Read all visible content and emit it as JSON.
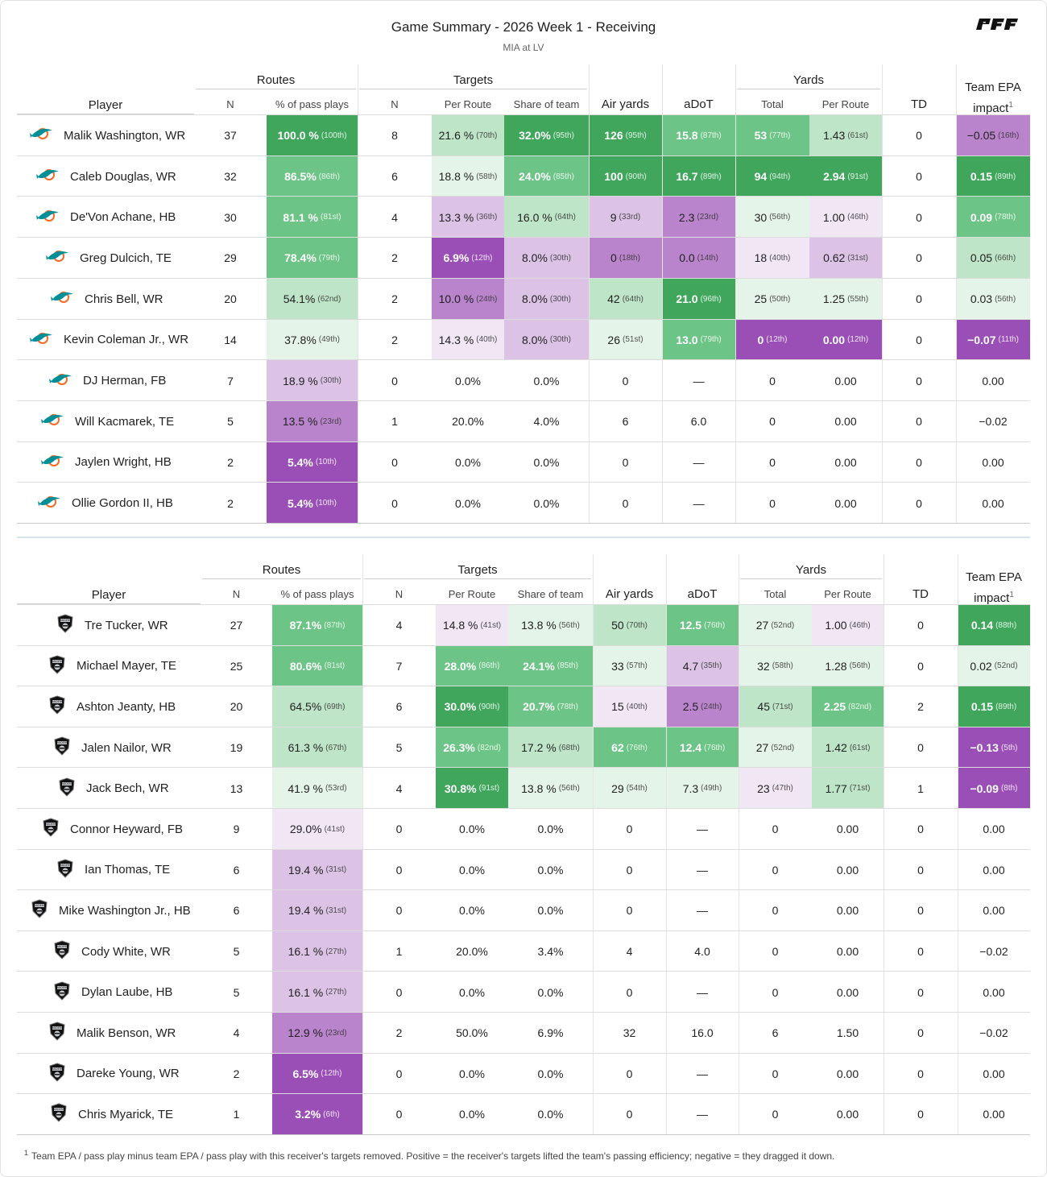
{
  "header": {
    "title": "Game Summary - 2026 Week 1 - Receiving",
    "subtitle": "MIA at LV",
    "logo_icon": "pff-logo-icon"
  },
  "columns": {
    "player": "Player",
    "routes": "Routes",
    "targets": "Targets",
    "yards": "Yards",
    "n": "N",
    "pct_pass_plays": "% of pass plays",
    "per_route": "Per Route",
    "share_of_team": "Share of team",
    "air_yards": "Air yards",
    "adot": "aDoT",
    "total": "Total",
    "td": "TD",
    "epa_line1": "Team EPA",
    "epa_line2": "impact",
    "epa_sup": "1"
  },
  "colors": {
    "green_dark": "#3fa65c",
    "green_mid": "#6cc486",
    "green_light": "#bfe5c8",
    "green_pale": "#e5f4e8",
    "purple_dark": "#9a4fb6",
    "purple_mid": "#b984cc",
    "purple_light": "#dcc3e6",
    "purple_pale": "#f1e7f4"
  },
  "teams": [
    {
      "abbr": "MIA",
      "logo_icon": "dolphins-logo-icon",
      "rows": [
        {
          "player": "Malik Washington, WR",
          "routes_n": "37",
          "route_pct": "100.0 %",
          "route_rank": "(100th)",
          "tgt_n": "8",
          "per_route": "21.6 %",
          "per_route_rank": "(70th)",
          "share": "32.0%",
          "share_rank": "(95th)",
          "air": "126",
          "air_rank": "(95th)",
          "adot": "15.8",
          "adot_rank": "(87th)",
          "yds": "53",
          "yds_rank": "(77th)",
          "ypr": "1.43",
          "ypr_rank": "(61st)",
          "td": "0",
          "epa": "−0.05",
          "epa_rank": "(16th)"
        },
        {
          "player": "Caleb Douglas, WR",
          "routes_n": "32",
          "route_pct": "86.5%",
          "route_rank": "(86th)",
          "tgt_n": "6",
          "per_route": "18.8 %",
          "per_route_rank": "(58th)",
          "share": "24.0%",
          "share_rank": "(85th)",
          "air": "100",
          "air_rank": "(90th)",
          "adot": "16.7",
          "adot_rank": "(89th)",
          "yds": "94",
          "yds_rank": "(94th)",
          "ypr": "2.94",
          "ypr_rank": "(91st)",
          "td": "0",
          "epa": "0.15",
          "epa_rank": "(89th)"
        },
        {
          "player": "De'Von Achane, HB",
          "routes_n": "30",
          "route_pct": "81.1 %",
          "route_rank": "(81st)",
          "tgt_n": "4",
          "per_route": "13.3 %",
          "per_route_rank": "(36th)",
          "share": "16.0 %",
          "share_rank": "(64th)",
          "air": "9",
          "air_rank": "(33rd)",
          "adot": "2.3",
          "adot_rank": "(23rd)",
          "yds": "30",
          "yds_rank": "(56th)",
          "ypr": "1.00",
          "ypr_rank": "(46th)",
          "td": "0",
          "epa": "0.09",
          "epa_rank": "(78th)"
        },
        {
          "player": "Greg Dulcich, TE",
          "routes_n": "29",
          "route_pct": "78.4%",
          "route_rank": "(79th)",
          "tgt_n": "2",
          "per_route": "6.9%",
          "per_route_rank": "(12th)",
          "share": "8.0%",
          "share_rank": "(30th)",
          "air": "0",
          "air_rank": "(18th)",
          "adot": "0.0",
          "adot_rank": "(14th)",
          "yds": "18",
          "yds_rank": "(40th)",
          "ypr": "0.62",
          "ypr_rank": "(31st)",
          "td": "0",
          "epa": "0.05",
          "epa_rank": "(66th)"
        },
        {
          "player": "Chris Bell, WR",
          "routes_n": "20",
          "route_pct": "54.1%",
          "route_rank": "(62nd)",
          "tgt_n": "2",
          "per_route": "10.0 %",
          "per_route_rank": "(24th)",
          "share": "8.0%",
          "share_rank": "(30th)",
          "air": "42",
          "air_rank": "(64th)",
          "adot": "21.0",
          "adot_rank": "(96th)",
          "yds": "25",
          "yds_rank": "(50th)",
          "ypr": "1.25",
          "ypr_rank": "(55th)",
          "td": "0",
          "epa": "0.03",
          "epa_rank": "(56th)"
        },
        {
          "player": "Kevin Coleman Jr., WR",
          "routes_n": "14",
          "route_pct": "37.8%",
          "route_rank": "(49th)",
          "tgt_n": "2",
          "per_route": "14.3 %",
          "per_route_rank": "(40th)",
          "share": "8.0%",
          "share_rank": "(30th)",
          "air": "26",
          "air_rank": "(51st)",
          "adot": "13.0",
          "adot_rank": "(79th)",
          "yds": "0",
          "yds_rank": "(12th)",
          "ypr": "0.00",
          "ypr_rank": "(12th)",
          "td": "0",
          "epa": "−0.07",
          "epa_rank": "(11th)"
        },
        {
          "player": "DJ Herman, FB",
          "routes_n": "7",
          "route_pct": "18.9 %",
          "route_rank": "(30th)",
          "tgt_n": "0",
          "per_route": "0.0%",
          "per_route_rank": "",
          "share": "0.0%",
          "share_rank": "",
          "air": "0",
          "air_rank": "",
          "adot": "—",
          "adot_rank": "",
          "yds": "0",
          "yds_rank": "",
          "ypr": "0.00",
          "ypr_rank": "",
          "td": "0",
          "epa": "0.00",
          "epa_rank": ""
        },
        {
          "player": "Will Kacmarek, TE",
          "routes_n": "5",
          "route_pct": "13.5 %",
          "route_rank": "(23rd)",
          "tgt_n": "1",
          "per_route": "20.0%",
          "per_route_rank": "",
          "share": "4.0%",
          "share_rank": "",
          "air": "6",
          "air_rank": "",
          "adot": "6.0",
          "adot_rank": "",
          "yds": "0",
          "yds_rank": "",
          "ypr": "0.00",
          "ypr_rank": "",
          "td": "0",
          "epa": "−0.02",
          "epa_rank": ""
        },
        {
          "player": "Jaylen Wright, HB",
          "routes_n": "2",
          "route_pct": "5.4%",
          "route_rank": "(10th)",
          "tgt_n": "0",
          "per_route": "0.0%",
          "per_route_rank": "",
          "share": "0.0%",
          "share_rank": "",
          "air": "0",
          "air_rank": "",
          "adot": "—",
          "adot_rank": "",
          "yds": "0",
          "yds_rank": "",
          "ypr": "0.00",
          "ypr_rank": "",
          "td": "0",
          "epa": "0.00",
          "epa_rank": ""
        },
        {
          "player": "Ollie Gordon II, HB",
          "routes_n": "2",
          "route_pct": "5.4%",
          "route_rank": "(10th)",
          "tgt_n": "0",
          "per_route": "0.0%",
          "per_route_rank": "",
          "share": "0.0%",
          "share_rank": "",
          "air": "0",
          "air_rank": "",
          "adot": "—",
          "adot_rank": "",
          "yds": "0",
          "yds_rank": "",
          "ypr": "0.00",
          "ypr_rank": "",
          "td": "0",
          "epa": "0.00",
          "epa_rank": ""
        }
      ]
    },
    {
      "abbr": "LV",
      "logo_icon": "raiders-logo-icon",
      "rows": [
        {
          "player": "Tre Tucker, WR",
          "routes_n": "27",
          "route_pct": "87.1%",
          "route_rank": "(87th)",
          "tgt_n": "4",
          "per_route": "14.8 %",
          "per_route_rank": "(41st)",
          "share": "13.8 %",
          "share_rank": "(56th)",
          "air": "50",
          "air_rank": "(70th)",
          "adot": "12.5",
          "adot_rank": "(76th)",
          "yds": "27",
          "yds_rank": "(52nd)",
          "ypr": "1.00",
          "ypr_rank": "(46th)",
          "td": "0",
          "epa": "0.14",
          "epa_rank": "(88th)"
        },
        {
          "player": "Michael Mayer, TE",
          "routes_n": "25",
          "route_pct": "80.6%",
          "route_rank": "(81st)",
          "tgt_n": "7",
          "per_route": "28.0%",
          "per_route_rank": "(86th)",
          "share": "24.1%",
          "share_rank": "(85th)",
          "air": "33",
          "air_rank": "(57th)",
          "adot": "4.7",
          "adot_rank": "(35th)",
          "yds": "32",
          "yds_rank": "(58th)",
          "ypr": "1.28",
          "ypr_rank": "(56th)",
          "td": "0",
          "epa": "0.02",
          "epa_rank": "(52nd)"
        },
        {
          "player": "Ashton Jeanty, HB",
          "routes_n": "20",
          "route_pct": "64.5%",
          "route_rank": "(69th)",
          "tgt_n": "6",
          "per_route": "30.0%",
          "per_route_rank": "(90th)",
          "share": "20.7%",
          "share_rank": "(78th)",
          "air": "15",
          "air_rank": "(40th)",
          "adot": "2.5",
          "adot_rank": "(24th)",
          "yds": "45",
          "yds_rank": "(71st)",
          "ypr": "2.25",
          "ypr_rank": "(82nd)",
          "td": "2",
          "epa": "0.15",
          "epa_rank": "(89th)"
        },
        {
          "player": "Jalen Nailor, WR",
          "routes_n": "19",
          "route_pct": "61.3 %",
          "route_rank": "(67th)",
          "tgt_n": "5",
          "per_route": "26.3%",
          "per_route_rank": "(82nd)",
          "share": "17.2 %",
          "share_rank": "(68th)",
          "air": "62",
          "air_rank": "(76th)",
          "adot": "12.4",
          "adot_rank": "(76th)",
          "yds": "27",
          "yds_rank": "(52nd)",
          "ypr": "1.42",
          "ypr_rank": "(61st)",
          "td": "0",
          "epa": "−0.13",
          "epa_rank": "(5th)"
        },
        {
          "player": "Jack Bech, WR",
          "routes_n": "13",
          "route_pct": "41.9 %",
          "route_rank": "(53rd)",
          "tgt_n": "4",
          "per_route": "30.8%",
          "per_route_rank": "(91st)",
          "share": "13.8 %",
          "share_rank": "(56th)",
          "air": "29",
          "air_rank": "(54th)",
          "adot": "7.3",
          "adot_rank": "(49th)",
          "yds": "23",
          "yds_rank": "(47th)",
          "ypr": "1.77",
          "ypr_rank": "(71st)",
          "td": "1",
          "epa": "−0.09",
          "epa_rank": "(8th)"
        },
        {
          "player": "Connor Heyward, FB",
          "routes_n": "9",
          "route_pct": "29.0%",
          "route_rank": "(41st)",
          "tgt_n": "0",
          "per_route": "0.0%",
          "per_route_rank": "",
          "share": "0.0%",
          "share_rank": "",
          "air": "0",
          "air_rank": "",
          "adot": "—",
          "adot_rank": "",
          "yds": "0",
          "yds_rank": "",
          "ypr": "0.00",
          "ypr_rank": "",
          "td": "0",
          "epa": "0.00",
          "epa_rank": ""
        },
        {
          "player": "Ian Thomas, TE",
          "routes_n": "6",
          "route_pct": "19.4 %",
          "route_rank": "(31st)",
          "tgt_n": "0",
          "per_route": "0.0%",
          "per_route_rank": "",
          "share": "0.0%",
          "share_rank": "",
          "air": "0",
          "air_rank": "",
          "adot": "—",
          "adot_rank": "",
          "yds": "0",
          "yds_rank": "",
          "ypr": "0.00",
          "ypr_rank": "",
          "td": "0",
          "epa": "0.00",
          "epa_rank": ""
        },
        {
          "player": "Mike Washington Jr., HB",
          "routes_n": "6",
          "route_pct": "19.4 %",
          "route_rank": "(31st)",
          "tgt_n": "0",
          "per_route": "0.0%",
          "per_route_rank": "",
          "share": "0.0%",
          "share_rank": "",
          "air": "0",
          "air_rank": "",
          "adot": "—",
          "adot_rank": "",
          "yds": "0",
          "yds_rank": "",
          "ypr": "0.00",
          "ypr_rank": "",
          "td": "0",
          "epa": "0.00",
          "epa_rank": ""
        },
        {
          "player": "Cody White, WR",
          "routes_n": "5",
          "route_pct": "16.1 %",
          "route_rank": "(27th)",
          "tgt_n": "1",
          "per_route": "20.0%",
          "per_route_rank": "",
          "share": "3.4%",
          "share_rank": "",
          "air": "4",
          "air_rank": "",
          "adot": "4.0",
          "adot_rank": "",
          "yds": "0",
          "yds_rank": "",
          "ypr": "0.00",
          "ypr_rank": "",
          "td": "0",
          "epa": "−0.02",
          "epa_rank": ""
        },
        {
          "player": "Dylan Laube, HB",
          "routes_n": "5",
          "route_pct": "16.1 %",
          "route_rank": "(27th)",
          "tgt_n": "0",
          "per_route": "0.0%",
          "per_route_rank": "",
          "share": "0.0%",
          "share_rank": "",
          "air": "0",
          "air_rank": "",
          "adot": "—",
          "adot_rank": "",
          "yds": "0",
          "yds_rank": "",
          "ypr": "0.00",
          "ypr_rank": "",
          "td": "0",
          "epa": "0.00",
          "epa_rank": ""
        },
        {
          "player": "Malik Benson, WR",
          "routes_n": "4",
          "route_pct": "12.9 %",
          "route_rank": "(23rd)",
          "tgt_n": "2",
          "per_route": "50.0%",
          "per_route_rank": "",
          "share": "6.9%",
          "share_rank": "",
          "air": "32",
          "air_rank": "",
          "adot": "16.0",
          "adot_rank": "",
          "yds": "6",
          "yds_rank": "",
          "ypr": "1.50",
          "ypr_rank": "",
          "td": "0",
          "epa": "−0.02",
          "epa_rank": ""
        },
        {
          "player": "Dareke Young, WR",
          "routes_n": "2",
          "route_pct": "6.5%",
          "route_rank": "(12th)",
          "tgt_n": "0",
          "per_route": "0.0%",
          "per_route_rank": "",
          "share": "0.0%",
          "share_rank": "",
          "air": "0",
          "air_rank": "",
          "adot": "—",
          "adot_rank": "",
          "yds": "0",
          "yds_rank": "",
          "ypr": "0.00",
          "ypr_rank": "",
          "td": "0",
          "epa": "0.00",
          "epa_rank": ""
        },
        {
          "player": "Chris Myarick, TE",
          "routes_n": "1",
          "route_pct": "3.2%",
          "route_rank": "(6th)",
          "tgt_n": "0",
          "per_route": "0.0%",
          "per_route_rank": "",
          "share": "0.0%",
          "share_rank": "",
          "air": "0",
          "air_rank": "",
          "adot": "—",
          "adot_rank": "",
          "yds": "0",
          "yds_rank": "",
          "ypr": "0.00",
          "ypr_rank": "",
          "td": "0",
          "epa": "0.00",
          "epa_rank": ""
        }
      ]
    }
  ],
  "footnote": {
    "marker": "1",
    "text": "Team EPA / pass play minus team EPA / pass play with this receiver's targets removed. Positive = the receiver's targets lifted the team's passing efficiency; negative = they dragged it down."
  }
}
